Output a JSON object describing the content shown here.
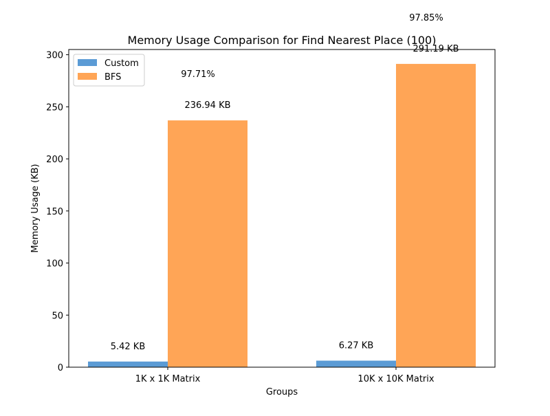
{
  "chart_data": {
    "type": "bar",
    "title": "Memory Usage Comparison for Find Nearest Place (100)",
    "xlabel": "Groups",
    "ylabel": "Memory Usage (KB)",
    "categories": [
      "1K x 1K Matrix",
      "10K x 10K Matrix"
    ],
    "ylim": [
      0,
      305
    ],
    "yticks": [
      0,
      50,
      100,
      150,
      200,
      250,
      300
    ],
    "grid": false,
    "legend_position": "top-left",
    "series": [
      {
        "name": "Custom",
        "color": "#5b9bd5",
        "values": [
          5.42,
          6.27
        ],
        "labels": [
          "5.42 KB",
          "6.27 KB"
        ]
      },
      {
        "name": "BFS",
        "color": "#ffa556",
        "values": [
          236.94,
          291.19
        ],
        "labels": [
          "236.94 KB",
          "291.19 KB"
        ]
      }
    ],
    "annotations": [
      "97.71%",
      "97.85%"
    ]
  }
}
